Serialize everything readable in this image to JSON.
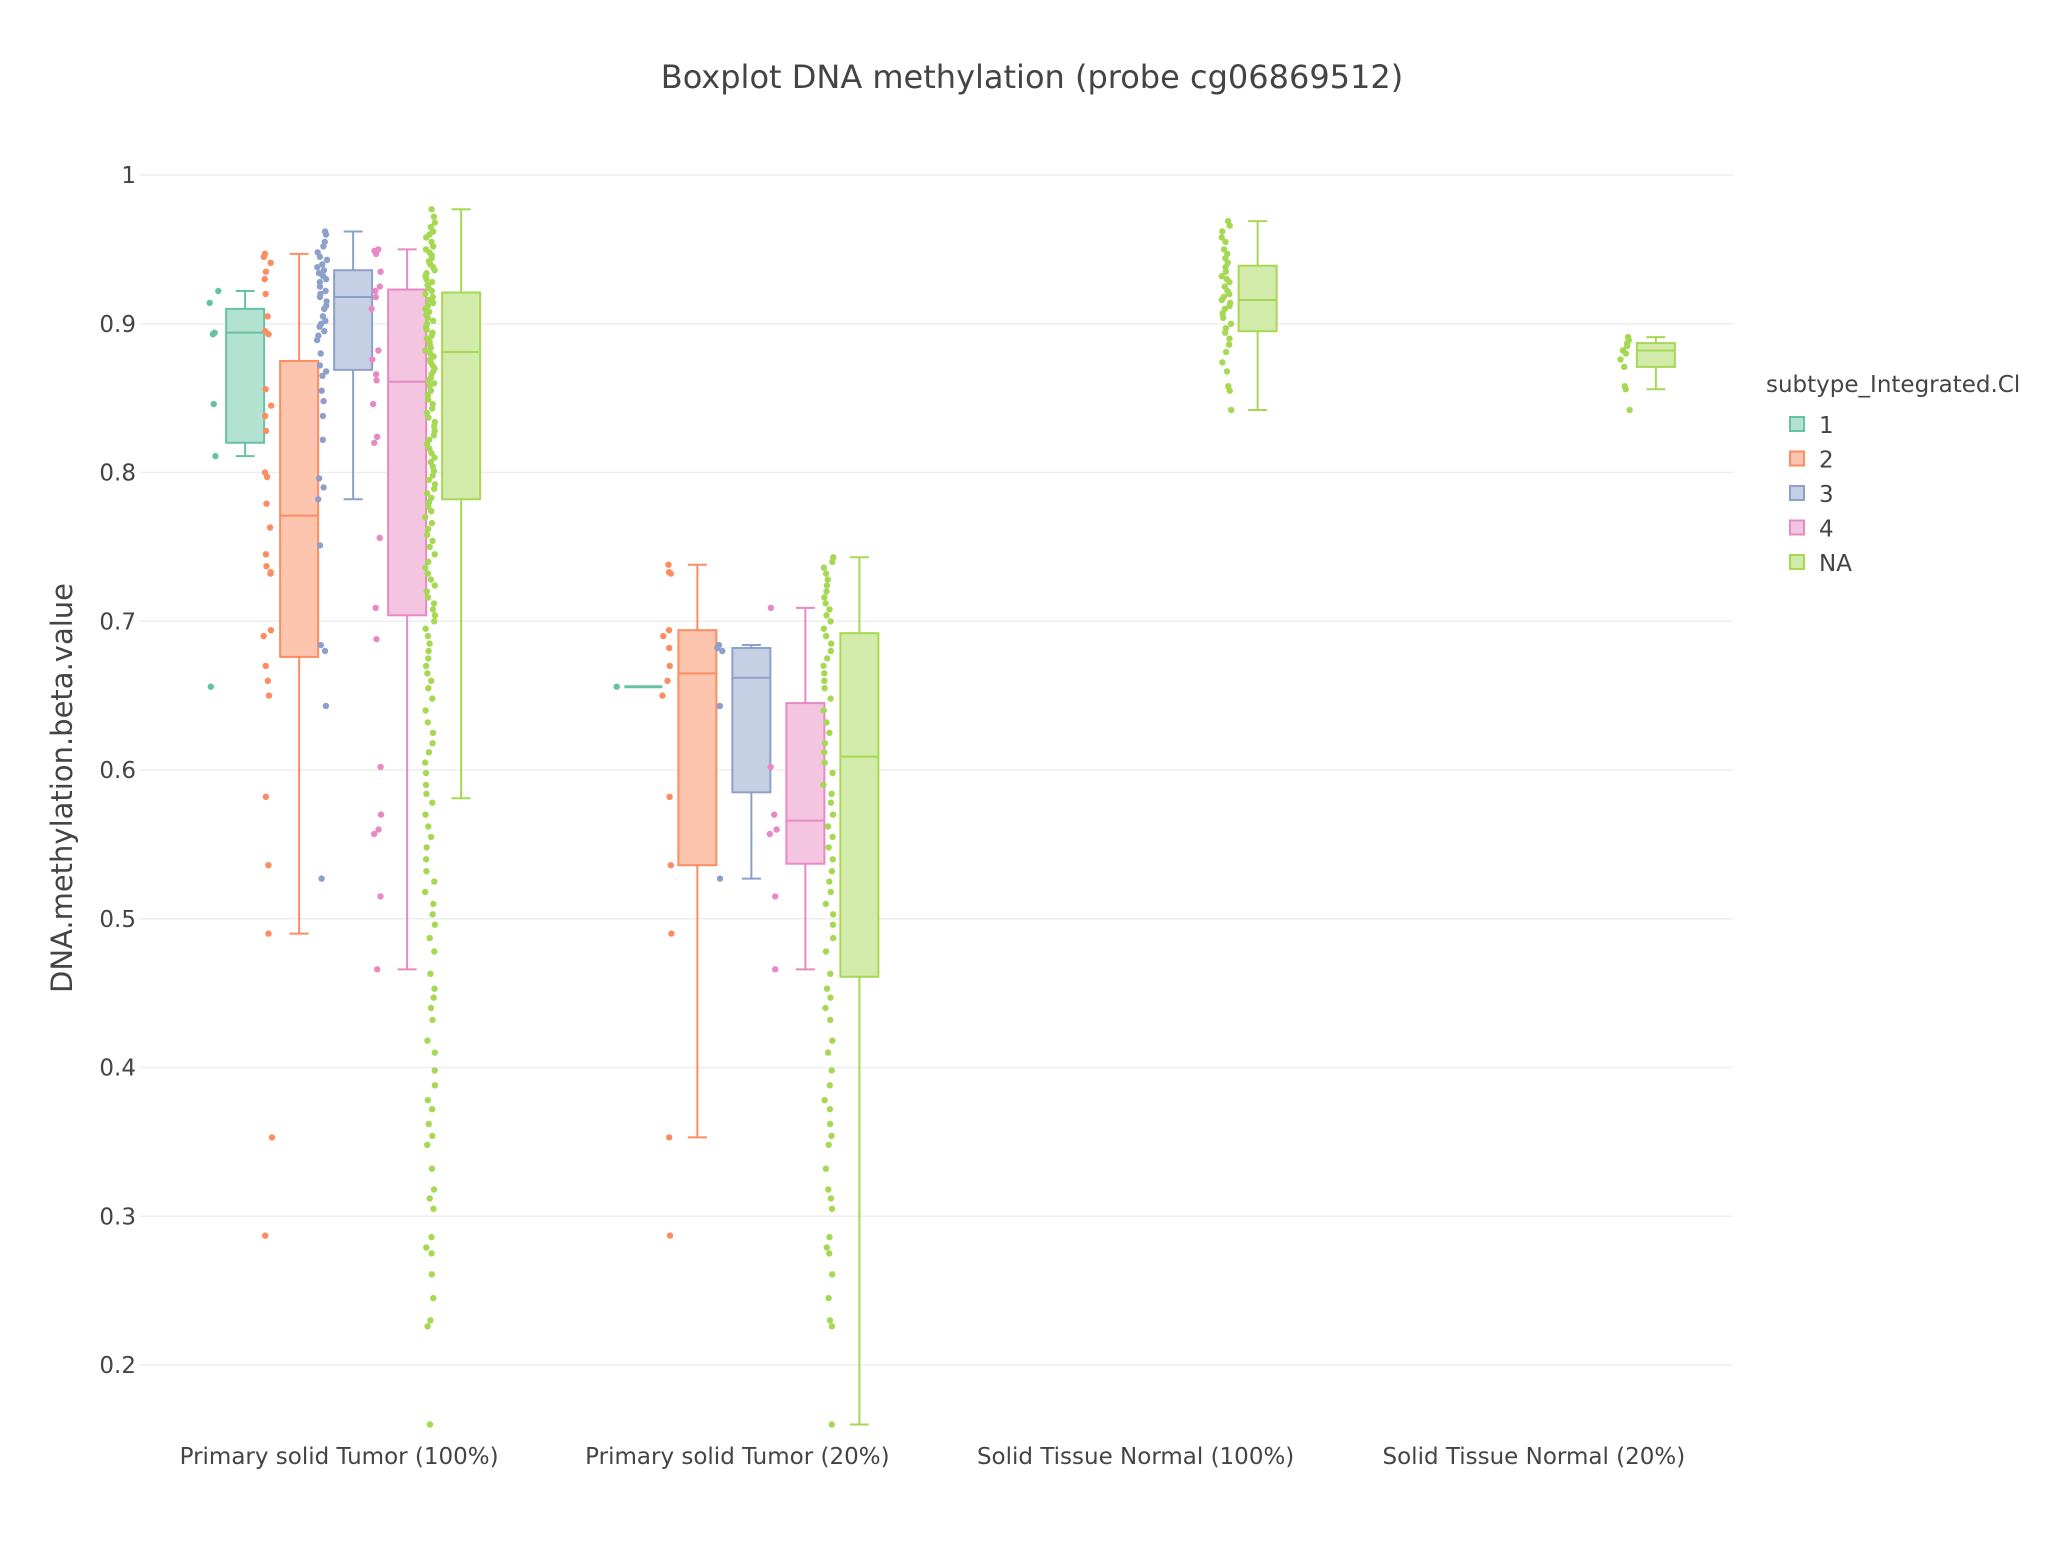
{
  "chart_data": {
    "type": "box",
    "title": "Boxplot DNA methylation (probe cg06869512)",
    "xlabel": "",
    "ylabel": "DNA.methylation.beta.value",
    "ylim": [
      0.12,
      1.02
    ],
    "yticks": [
      0.2,
      0.3,
      0.4,
      0.5,
      0.6,
      0.7,
      0.8,
      0.9,
      1
    ],
    "grid": true,
    "legend_title": "subtype_Integrated.Cl",
    "legend_position": "right",
    "categories": [
      "Primary solid Tumor (100%)",
      "Primary solid Tumor (20%)",
      "Solid Tissue Normal (100%)",
      "Solid Tissue Normal (20%)"
    ],
    "series": [
      {
        "name": "1",
        "color": "#66c2a5",
        "fill": "#b3e2d1",
        "boxes": [
          {
            "category": 0,
            "min": 0.811,
            "q1": 0.82,
            "median": 0.894,
            "q3": 0.91,
            "max": 0.922,
            "points": [
              0.922,
              0.914,
              0.894,
              0.893,
              0.846,
              0.811,
              0.656
            ]
          },
          {
            "category": 1,
            "min": 0.656,
            "q1": 0.656,
            "median": 0.656,
            "q3": 0.656,
            "max": 0.656,
            "points": [
              0.656
            ]
          }
        ]
      },
      {
        "name": "2",
        "color": "#fc8d62",
        "fill": "#fdc4ae",
        "boxes": [
          {
            "category": 0,
            "min": 0.49,
            "q1": 0.676,
            "median": 0.771,
            "q3": 0.875,
            "max": 0.947,
            "points": [
              0.947,
              0.945,
              0.941,
              0.935,
              0.93,
              0.92,
              0.905,
              0.895,
              0.893,
              0.856,
              0.845,
              0.838,
              0.828,
              0.8,
              0.797,
              0.779,
              0.763,
              0.745,
              0.737,
              0.733,
              0.732,
              0.694,
              0.69,
              0.67,
              0.66,
              0.65,
              0.582,
              0.536,
              0.49,
              0.353,
              0.287
            ]
          },
          {
            "category": 1,
            "min": 0.353,
            "q1": 0.536,
            "median": 0.665,
            "q3": 0.694,
            "max": 0.738,
            "points": [
              0.738,
              0.733,
              0.732,
              0.694,
              0.69,
              0.682,
              0.67,
              0.66,
              0.65,
              0.582,
              0.536,
              0.49,
              0.353,
              0.287
            ]
          }
        ]
      },
      {
        "name": "3",
        "color": "#8da0cb",
        "fill": "#c6d0e5",
        "boxes": [
          {
            "category": 0,
            "min": 0.782,
            "q1": 0.869,
            "median": 0.918,
            "q3": 0.936,
            "max": 0.962,
            "points": [
              0.962,
              0.96,
              0.955,
              0.952,
              0.948,
              0.945,
              0.943,
              0.94,
              0.938,
              0.936,
              0.934,
              0.932,
              0.93,
              0.928,
              0.925,
              0.922,
              0.92,
              0.918,
              0.915,
              0.912,
              0.91,
              0.905,
              0.902,
              0.9,
              0.898,
              0.895,
              0.892,
              0.889,
              0.88,
              0.872,
              0.868,
              0.865,
              0.855,
              0.848,
              0.838,
              0.822,
              0.796,
              0.79,
              0.782,
              0.751,
              0.684,
              0.68,
              0.643,
              0.527
            ]
          },
          {
            "category": 1,
            "min": 0.527,
            "q1": 0.585,
            "median": 0.662,
            "q3": 0.682,
            "max": 0.684,
            "points": [
              0.684,
              0.682,
              0.68,
              0.643,
              0.527
            ]
          }
        ]
      },
      {
        "name": "4",
        "color": "#e78ac3",
        "fill": "#f3c5e1",
        "boxes": [
          {
            "category": 0,
            "min": 0.466,
            "q1": 0.704,
            "median": 0.861,
            "q3": 0.923,
            "max": 0.95,
            "points": [
              0.95,
              0.949,
              0.947,
              0.935,
              0.925,
              0.922,
              0.918,
              0.91,
              0.882,
              0.876,
              0.866,
              0.862,
              0.846,
              0.824,
              0.82,
              0.756,
              0.709,
              0.688,
              0.602,
              0.57,
              0.56,
              0.557,
              0.515,
              0.466
            ]
          },
          {
            "category": 1,
            "min": 0.466,
            "q1": 0.537,
            "median": 0.566,
            "q3": 0.645,
            "max": 0.709,
            "points": [
              0.709,
              0.602,
              0.57,
              0.56,
              0.557,
              0.515,
              0.466
            ]
          }
        ]
      },
      {
        "name": "NA",
        "color": "#a6d854",
        "fill": "#d3ebaa",
        "boxes": [
          {
            "category": 0,
            "min": 0.581,
            "q1": 0.782,
            "median": 0.881,
            "q3": 0.921,
            "max": 0.977,
            "points": [
              0.977,
              0.972,
              0.968,
              0.965,
              0.962,
              0.96,
              0.958,
              0.955,
              0.952,
              0.95,
              0.948,
              0.946,
              0.944,
              0.942,
              0.94,
              0.938,
              0.936,
              0.934,
              0.932,
              0.93,
              0.928,
              0.926,
              0.924,
              0.922,
              0.92,
              0.918,
              0.916,
              0.914,
              0.912,
              0.91,
              0.908,
              0.906,
              0.904,
              0.902,
              0.9,
              0.898,
              0.896,
              0.894,
              0.892,
              0.89,
              0.888,
              0.886,
              0.884,
              0.882,
              0.88,
              0.878,
              0.876,
              0.874,
              0.872,
              0.87,
              0.868,
              0.866,
              0.864,
              0.862,
              0.86,
              0.858,
              0.855,
              0.852,
              0.849,
              0.846,
              0.843,
              0.84,
              0.837,
              0.834,
              0.831,
              0.828,
              0.825,
              0.822,
              0.819,
              0.816,
              0.813,
              0.81,
              0.807,
              0.804,
              0.801,
              0.798,
              0.795,
              0.792,
              0.789,
              0.786,
              0.783,
              0.78,
              0.777,
              0.774,
              0.77,
              0.766,
              0.762,
              0.758,
              0.754,
              0.75,
              0.745,
              0.74,
              0.736,
              0.732,
              0.728,
              0.724,
              0.72,
              0.716,
              0.712,
              0.708,
              0.704,
              0.7,
              0.695,
              0.69,
              0.685,
              0.68,
              0.675,
              0.67,
              0.665,
              0.66,
              0.655,
              0.648,
              0.64,
              0.632,
              0.625,
              0.618,
              0.612,
              0.605,
              0.598,
              0.59,
              0.584,
              0.578,
              0.57,
              0.562,
              0.555,
              0.548,
              0.54,
              0.532,
              0.525,
              0.518,
              0.51,
              0.503,
              0.496,
              0.487,
              0.478,
              0.463,
              0.453,
              0.447,
              0.44,
              0.432,
              0.418,
              0.41,
              0.398,
              0.388,
              0.378,
              0.372,
              0.362,
              0.354,
              0.348,
              0.332,
              0.318,
              0.312,
              0.305,
              0.286,
              0.279,
              0.275,
              0.261,
              0.245,
              0.23,
              0.226,
              0.16
            ]
          },
          {
            "category": 1,
            "min": 0.16,
            "q1": 0.461,
            "median": 0.609,
            "q3": 0.692,
            "max": 0.743,
            "points": [
              0.743,
              0.74,
              0.736,
              0.732,
              0.728,
              0.724,
              0.72,
              0.716,
              0.712,
              0.708,
              0.704,
              0.7,
              0.695,
              0.69,
              0.685,
              0.68,
              0.675,
              0.67,
              0.665,
              0.66,
              0.655,
              0.648,
              0.64,
              0.632,
              0.625,
              0.618,
              0.612,
              0.605,
              0.598,
              0.59,
              0.584,
              0.578,
              0.57,
              0.562,
              0.555,
              0.548,
              0.54,
              0.532,
              0.525,
              0.518,
              0.51,
              0.503,
              0.496,
              0.487,
              0.478,
              0.463,
              0.453,
              0.447,
              0.44,
              0.432,
              0.418,
              0.41,
              0.398,
              0.388,
              0.378,
              0.372,
              0.362,
              0.354,
              0.348,
              0.332,
              0.318,
              0.312,
              0.305,
              0.286,
              0.279,
              0.275,
              0.261,
              0.245,
              0.23,
              0.226,
              0.16
            ]
          },
          {
            "category": 2,
            "min": 0.842,
            "q1": 0.895,
            "median": 0.916,
            "q3": 0.939,
            "max": 0.969,
            "points": [
              0.969,
              0.966,
              0.962,
              0.958,
              0.955,
              0.95,
              0.947,
              0.944,
              0.941,
              0.938,
              0.935,
              0.932,
              0.93,
              0.928,
              0.925,
              0.922,
              0.92,
              0.918,
              0.916,
              0.914,
              0.912,
              0.91,
              0.907,
              0.904,
              0.9,
              0.897,
              0.894,
              0.89,
              0.886,
              0.881,
              0.874,
              0.868,
              0.858,
              0.855,
              0.842
            ]
          },
          {
            "category": 3,
            "min": 0.856,
            "q1": 0.871,
            "median": 0.882,
            "q3": 0.887,
            "max": 0.891,
            "points": [
              0.891,
              0.889,
              0.887,
              0.885,
              0.882,
              0.88,
              0.876,
              0.871,
              0.858,
              0.856,
              0.842
            ]
          }
        ]
      }
    ]
  }
}
